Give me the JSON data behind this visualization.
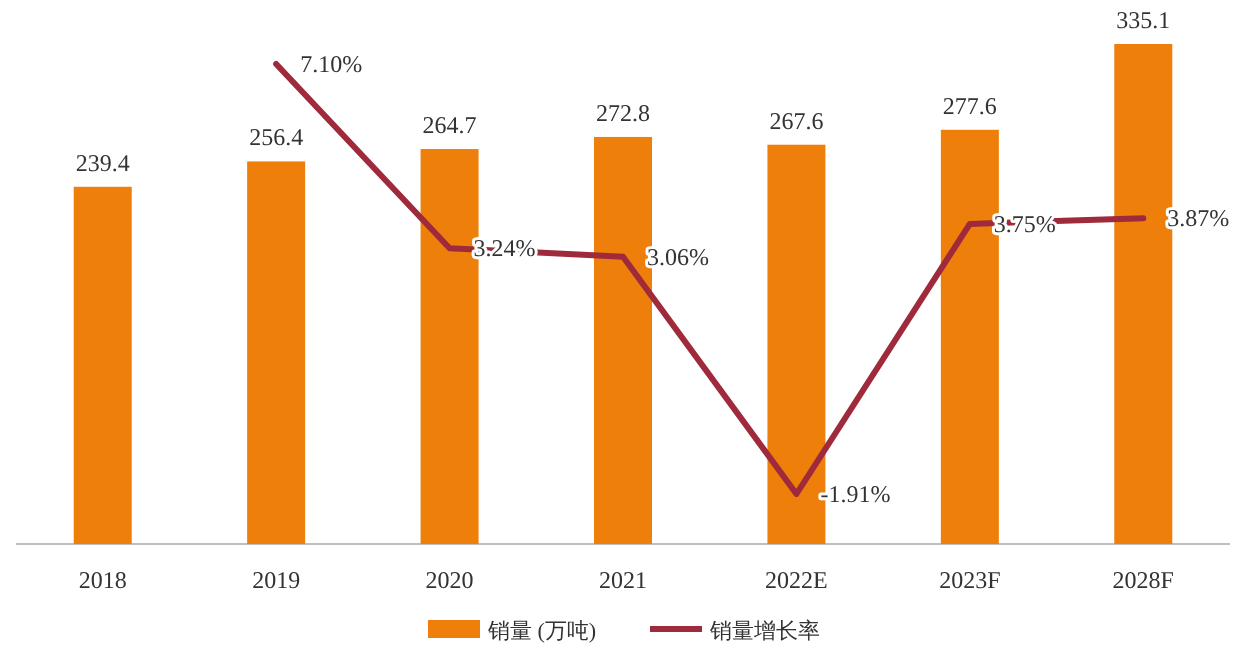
{
  "chart_data": {
    "type": "bar",
    "categories": [
      "2018",
      "2019",
      "2020",
      "2021",
      "2022E",
      "2023F",
      "2028F"
    ],
    "series": [
      {
        "name": "销量 (万吨)",
        "color": "#ee7f0b",
        "values": [
          239.4,
          256.4,
          264.7,
          272.8,
          267.6,
          277.6,
          335.1
        ]
      },
      {
        "name": "销量增长率",
        "type": "line",
        "axis": "y2",
        "color": "#9e2a3b",
        "values": [
          null,
          7.1,
          3.24,
          3.06,
          -1.91,
          3.75,
          3.87
        ],
        "value_labels": [
          null,
          "7.10%",
          "3.24%",
          "3.06%",
          "-1.91%",
          "3.75%",
          "3.87%"
        ]
      }
    ],
    "data_labels": true,
    "legend": "bottom",
    "marker": "none",
    "line_style": "solid"
  }
}
